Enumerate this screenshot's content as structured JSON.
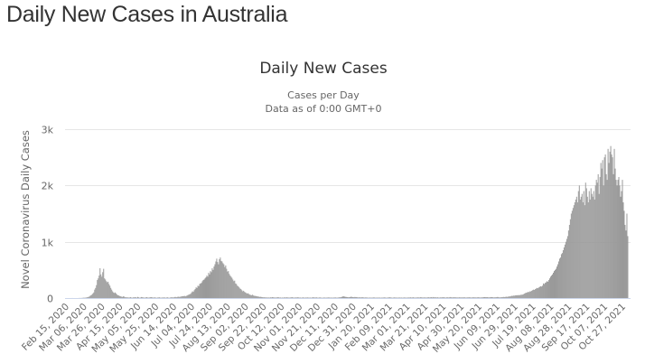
{
  "page": {
    "heading": "Daily New Cases in Australia"
  },
  "chart_data": {
    "type": "bar",
    "title": "Daily New Cases",
    "subtitle": [
      "Cases per Day",
      "Data as of 0:00 GMT+0"
    ],
    "xlabel": "",
    "ylabel": "Novel Coronavirus Daily Cases",
    "ylim": [
      0,
      3000
    ],
    "y_ticks": [
      {
        "value": 0,
        "label": "0"
      },
      {
        "value": 1000,
        "label": "1k"
      },
      {
        "value": 2000,
        "label": "2k"
      },
      {
        "value": 3000,
        "label": "3k"
      }
    ],
    "x_tick_labels": [
      "Feb 15, 2020",
      "Mar 06, 2020",
      "Mar 26, 2020",
      "Apr 15, 2020",
      "May 05, 2020",
      "May 25, 2020",
      "Jun 14, 2020",
      "Jul 04, 2020",
      "Jul 24, 2020",
      "Aug 13, 2020",
      "Sep 02, 2020",
      "Sep 22, 2020",
      "Oct 12, 2020",
      "Nov 01, 2020",
      "Nov 21, 2020",
      "Dec 11, 2020",
      "Dec 31, 2020",
      "Jan 20, 2021",
      "Feb 09, 2021",
      "Mar 01, 2021",
      "Mar 21, 2021",
      "Apr 10, 2021",
      "Apr 30, 2021",
      "May 20, 2021",
      "Jun 09, 2021",
      "Jun 29, 2021",
      "Jul 19, 2021",
      "Aug 08, 2021",
      "Aug 28, 2021",
      "Sep 17, 2021",
      "Oct 07, 2021",
      "Oct 27, 2021"
    ],
    "x_start": "Feb 15, 2020",
    "x_interval": "daily",
    "grid": true,
    "bar_color": "#999999",
    "values": [
      0,
      0,
      0,
      0,
      0,
      0,
      1,
      0,
      0,
      0,
      0,
      0,
      0,
      1,
      1,
      2,
      1,
      3,
      4,
      7,
      5,
      8,
      10,
      15,
      20,
      25,
      40,
      50,
      60,
      80,
      100,
      150,
      180,
      230,
      320,
      350,
      400,
      530,
      420,
      380,
      460,
      520,
      350,
      330,
      300,
      280,
      290,
      250,
      220,
      180,
      150,
      120,
      100,
      90,
      100,
      80,
      60,
      50,
      45,
      35,
      30,
      25,
      20,
      30,
      25,
      12,
      15,
      10,
      12,
      8,
      10,
      15,
      8,
      6,
      12,
      10,
      15,
      10,
      8,
      20,
      12,
      6,
      8,
      18,
      14,
      10,
      9,
      6,
      12,
      15,
      9,
      8,
      10,
      14,
      16,
      12,
      8,
      10,
      12,
      8,
      5,
      9,
      10,
      14,
      8,
      6,
      10,
      8,
      12,
      10,
      6,
      9,
      14,
      8,
      4,
      10,
      12,
      15,
      9,
      13,
      18,
      20,
      14,
      19,
      25,
      20,
      22,
      26,
      30,
      35,
      32,
      40,
      30,
      38,
      45,
      55,
      60,
      70,
      75,
      100,
      120,
      110,
      140,
      160,
      190,
      180,
      220,
      210,
      250,
      260,
      270,
      300,
      320,
      330,
      350,
      370,
      400,
      380,
      450,
      420,
      480,
      460,
      530,
      500,
      560,
      600,
      650,
      700,
      640,
      600,
      690,
      720,
      660,
      650,
      620,
      600,
      550,
      580,
      520,
      470,
      480,
      430,
      400,
      380,
      360,
      330,
      300,
      310,
      260,
      250,
      220,
      210,
      190,
      170,
      160,
      140,
      120,
      130,
      110,
      100,
      90,
      80,
      85,
      70,
      60,
      55,
      50,
      60,
      45,
      40,
      38,
      35,
      30,
      28,
      25,
      20,
      22,
      18,
      15,
      12,
      14,
      10,
      12,
      8,
      10,
      9,
      8,
      12,
      10,
      15,
      12,
      10,
      8,
      9,
      10,
      14,
      12,
      8,
      10,
      6,
      9,
      7,
      10,
      12,
      8,
      14,
      10,
      9,
      8,
      10,
      12,
      15,
      10,
      8,
      9,
      11,
      10,
      14,
      12,
      8,
      10,
      6,
      8,
      12,
      9,
      6,
      10,
      8,
      12,
      9,
      7,
      10,
      6,
      8,
      15,
      12,
      10,
      9,
      14,
      8,
      6,
      10,
      12,
      8,
      6,
      5,
      9,
      10,
      6,
      8,
      8,
      10,
      12,
      6,
      9,
      8,
      5,
      10,
      7,
      12,
      8,
      6,
      9,
      10,
      14,
      12,
      18,
      25,
      30,
      28,
      22,
      20,
      18,
      15,
      12,
      16,
      20,
      24,
      18,
      16,
      14,
      20,
      15,
      18,
      12,
      10,
      14,
      12,
      9,
      16,
      12,
      10,
      8,
      12,
      10,
      9,
      6,
      8,
      10,
      6,
      9,
      8,
      12,
      10,
      6,
      8,
      9,
      7,
      10,
      8,
      6,
      9,
      8,
      10,
      12,
      9,
      6,
      8,
      10,
      12,
      14,
      10,
      8,
      6,
      9,
      12,
      8,
      10,
      6,
      9,
      8,
      10,
      7,
      9,
      6,
      8,
      10,
      9,
      6,
      8,
      8,
      10,
      9,
      12,
      8,
      10,
      12,
      9,
      6,
      10,
      8,
      12,
      10,
      9,
      14,
      12,
      10,
      8,
      12,
      9,
      10,
      8,
      12,
      14,
      10,
      12,
      16,
      10,
      18,
      12,
      14,
      12,
      10,
      14,
      9,
      8,
      12,
      10,
      14,
      12,
      16,
      10,
      8,
      12,
      14,
      10,
      12,
      18,
      14,
      12,
      10,
      16,
      12,
      14,
      10,
      12,
      8,
      14,
      12,
      10,
      12,
      10,
      12,
      14,
      9,
      8,
      12,
      10,
      14,
      12,
      10,
      8,
      12,
      14,
      10,
      12,
      9,
      10,
      14,
      12,
      10,
      8,
      12,
      10,
      14,
      15,
      18,
      12,
      16,
      14,
      10,
      12,
      14,
      18,
      16,
      12,
      10,
      14,
      12,
      16,
      20,
      14,
      12,
      10,
      16,
      14,
      18,
      20,
      16,
      22,
      24,
      20,
      26,
      30,
      28,
      36,
      40,
      38,
      45,
      42,
      50,
      48,
      52,
      48,
      55,
      50,
      60,
      58,
      62,
      70,
      80,
      90,
      95,
      100,
      110,
      105,
      120,
      118,
      130,
      140,
      150,
      145,
      160,
      170,
      180,
      175,
      190,
      200,
      210,
      205,
      220,
      260,
      250,
      270,
      280,
      300,
      290,
      320,
      350,
      380,
      400,
      420,
      450,
      480,
      500,
      520,
      560,
      600,
      650,
      700,
      720,
      780,
      800,
      850,
      900,
      950,
      1000,
      1050,
      1100,
      1200,
      1300,
      1400,
      1500,
      1550,
      1600,
      1650,
      1700,
      1750,
      1800,
      1700,
      1900,
      2000,
      1750,
      1800,
      1850,
      1700,
      1900,
      1650,
      2050,
      1950,
      1800,
      1700,
      1900,
      1750,
      1950,
      1850,
      1800,
      1900,
      1750,
      2000,
      2100,
      2050,
      2200,
      1850,
      2150,
      2400,
      2300,
      2450,
      2000,
      2500,
      2550,
      2200,
      2100,
      2650,
      2400,
      2600,
      2700,
      2550,
      2500,
      2200,
      2650,
      2300,
      2100,
      2000,
      2100,
      2150,
      2000,
      1800,
      1900,
      2100,
      1700,
      1550,
      1300,
      1200,
      1500,
      1100
    ]
  }
}
